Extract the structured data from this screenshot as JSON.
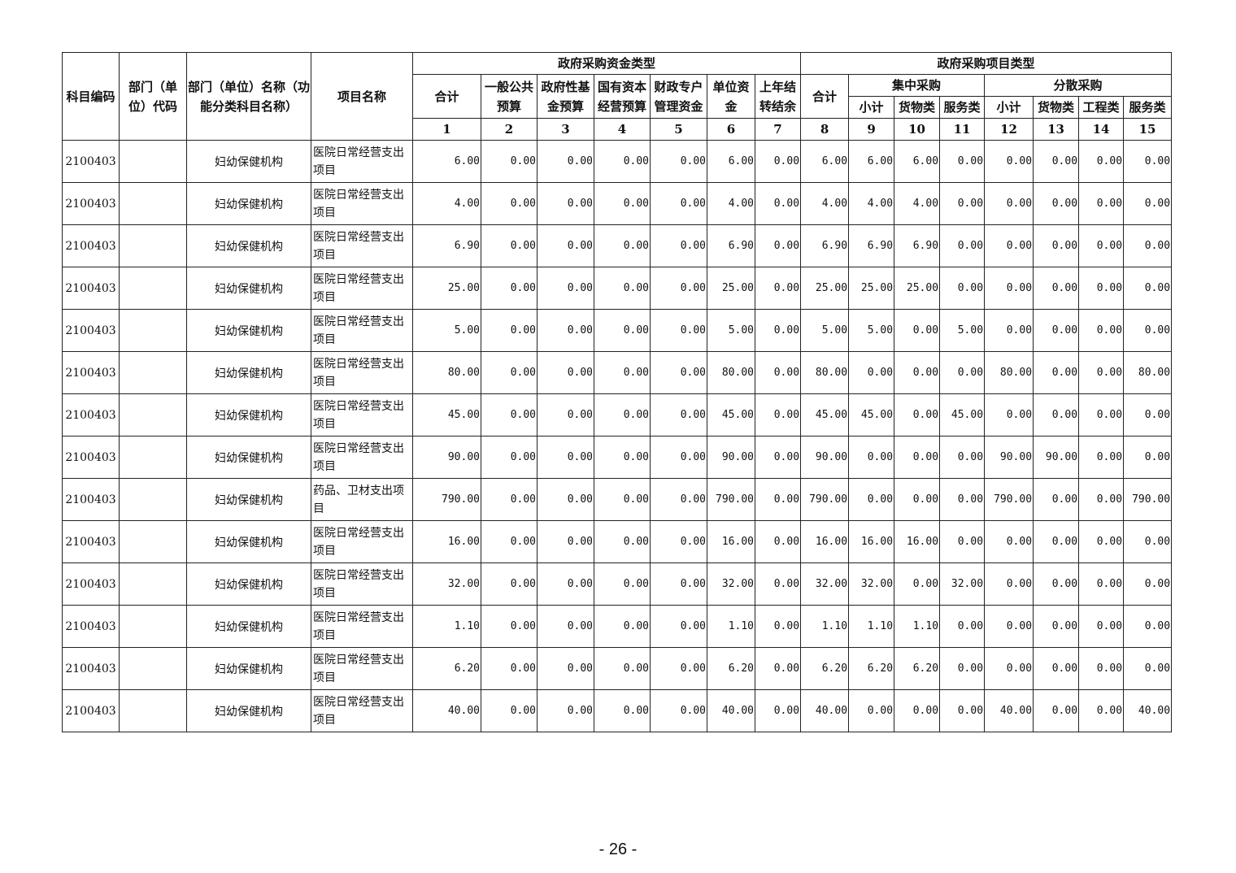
{
  "header": {
    "subject_code": "科目编码",
    "dept_code": "部门（单位）代码",
    "dept_name": "部门（单位）名称（功能分类科目名称）",
    "project_name": "项目名称",
    "fund_type": "政府采购资金类型",
    "proj_type": "政府采购项目类型",
    "fund_cols": [
      "合计",
      "一般公共预算",
      "政府性基金预算",
      "国有资本经营预算",
      "财政专户管理资金",
      "单位资金",
      "上年结转结余"
    ],
    "total": "合计",
    "central": "集中采购",
    "dispersed": "分散采购",
    "central_cols": [
      "小计",
      "货物类",
      "服务类"
    ],
    "dispersed_cols": [
      "小计",
      "货物类",
      "工程类",
      "服务类"
    ],
    "numbers": [
      "1",
      "2",
      "3",
      "4",
      "5",
      "6",
      "7",
      "8",
      "9",
      "10",
      "11",
      "12",
      "13",
      "14",
      "15"
    ]
  },
  "rows": [
    [
      "2100403",
      "",
      "妇幼保健机构",
      "医院日常经营支出项目",
      [
        "6.00",
        "0.00",
        "0.00",
        "0.00",
        "0.00",
        "6.00",
        "0.00",
        "6.00",
        "6.00",
        "6.00",
        "0.00",
        "0.00",
        "0.00",
        "0.00",
        "0.00"
      ]
    ],
    [
      "2100403",
      "",
      "妇幼保健机构",
      "医院日常经营支出项目",
      [
        "4.00",
        "0.00",
        "0.00",
        "0.00",
        "0.00",
        "4.00",
        "0.00",
        "4.00",
        "4.00",
        "4.00",
        "0.00",
        "0.00",
        "0.00",
        "0.00",
        "0.00"
      ]
    ],
    [
      "2100403",
      "",
      "妇幼保健机构",
      "医院日常经营支出项目",
      [
        "6.90",
        "0.00",
        "0.00",
        "0.00",
        "0.00",
        "6.90",
        "0.00",
        "6.90",
        "6.90",
        "6.90",
        "0.00",
        "0.00",
        "0.00",
        "0.00",
        "0.00"
      ]
    ],
    [
      "2100403",
      "",
      "妇幼保健机构",
      "医院日常经营支出项目",
      [
        "25.00",
        "0.00",
        "0.00",
        "0.00",
        "0.00",
        "25.00",
        "0.00",
        "25.00",
        "25.00",
        "25.00",
        "0.00",
        "0.00",
        "0.00",
        "0.00",
        "0.00"
      ]
    ],
    [
      "2100403",
      "",
      "妇幼保健机构",
      "医院日常经营支出项目",
      [
        "5.00",
        "0.00",
        "0.00",
        "0.00",
        "0.00",
        "5.00",
        "0.00",
        "5.00",
        "5.00",
        "0.00",
        "5.00",
        "0.00",
        "0.00",
        "0.00",
        "0.00"
      ]
    ],
    [
      "2100403",
      "",
      "妇幼保健机构",
      "医院日常经营支出项目",
      [
        "80.00",
        "0.00",
        "0.00",
        "0.00",
        "0.00",
        "80.00",
        "0.00",
        "80.00",
        "0.00",
        "0.00",
        "0.00",
        "80.00",
        "0.00",
        "0.00",
        "80.00"
      ]
    ],
    [
      "2100403",
      "",
      "妇幼保健机构",
      "医院日常经营支出项目",
      [
        "45.00",
        "0.00",
        "0.00",
        "0.00",
        "0.00",
        "45.00",
        "0.00",
        "45.00",
        "45.00",
        "0.00",
        "45.00",
        "0.00",
        "0.00",
        "0.00",
        "0.00"
      ]
    ],
    [
      "2100403",
      "",
      "妇幼保健机构",
      "医院日常经营支出项目",
      [
        "90.00",
        "0.00",
        "0.00",
        "0.00",
        "0.00",
        "90.00",
        "0.00",
        "90.00",
        "0.00",
        "0.00",
        "0.00",
        "90.00",
        "90.00",
        "0.00",
        "0.00"
      ]
    ],
    [
      "2100403",
      "",
      "妇幼保健机构",
      "药品、卫材支出项目",
      [
        "790.00",
        "0.00",
        "0.00",
        "0.00",
        "0.00",
        "790.00",
        "0.00",
        "790.00",
        "0.00",
        "0.00",
        "0.00",
        "790.00",
        "0.00",
        "0.00",
        "790.00"
      ]
    ],
    [
      "2100403",
      "",
      "妇幼保健机构",
      "医院日常经营支出项目",
      [
        "16.00",
        "0.00",
        "0.00",
        "0.00",
        "0.00",
        "16.00",
        "0.00",
        "16.00",
        "16.00",
        "16.00",
        "0.00",
        "0.00",
        "0.00",
        "0.00",
        "0.00"
      ]
    ],
    [
      "2100403",
      "",
      "妇幼保健机构",
      "医院日常经营支出项目",
      [
        "32.00",
        "0.00",
        "0.00",
        "0.00",
        "0.00",
        "32.00",
        "0.00",
        "32.00",
        "32.00",
        "0.00",
        "32.00",
        "0.00",
        "0.00",
        "0.00",
        "0.00"
      ]
    ],
    [
      "2100403",
      "",
      "妇幼保健机构",
      "医院日常经营支出项目",
      [
        "1.10",
        "0.00",
        "0.00",
        "0.00",
        "0.00",
        "1.10",
        "0.00",
        "1.10",
        "1.10",
        "1.10",
        "0.00",
        "0.00",
        "0.00",
        "0.00",
        "0.00"
      ]
    ],
    [
      "2100403",
      "",
      "妇幼保健机构",
      "医院日常经营支出项目",
      [
        "6.20",
        "0.00",
        "0.00",
        "0.00",
        "0.00",
        "6.20",
        "0.00",
        "6.20",
        "6.20",
        "6.20",
        "0.00",
        "0.00",
        "0.00",
        "0.00",
        "0.00"
      ]
    ],
    [
      "2100403",
      "",
      "妇幼保健机构",
      "医院日常经营支出项目",
      [
        "40.00",
        "0.00",
        "0.00",
        "0.00",
        "0.00",
        "40.00",
        "0.00",
        "40.00",
        "0.00",
        "0.00",
        "0.00",
        "40.00",
        "0.00",
        "0.00",
        "40.00"
      ]
    ]
  ],
  "page_number": "- 26 -"
}
